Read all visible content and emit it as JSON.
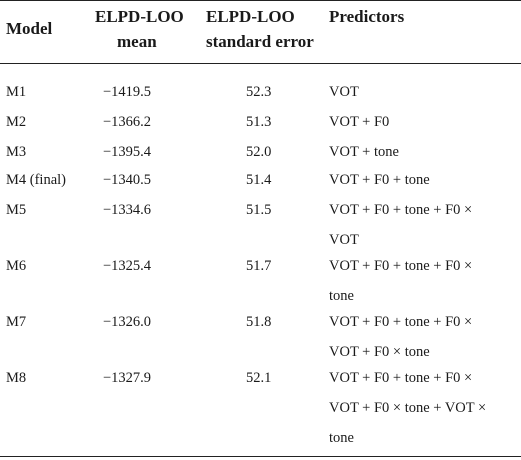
{
  "table": {
    "headers": {
      "model": "Model",
      "mean_line1": "ELPD-LOO",
      "mean_line2": "mean",
      "se_line1": "ELPD-LOO",
      "se_line2": "standard error",
      "predictors": "Predictors"
    },
    "rows": [
      {
        "model": "M1",
        "mean": "−1419.5",
        "se": "52.3",
        "pred": [
          "VOT"
        ]
      },
      {
        "model": "M2",
        "mean": "−1366.2",
        "se": "51.3",
        "pred": [
          "VOT + F0"
        ]
      },
      {
        "model": "M3",
        "mean": "−1395.4",
        "se": "52.0",
        "pred": [
          "VOT + tone"
        ]
      },
      {
        "model": "M4 (final)",
        "mean": "−1340.5",
        "se": "51.4",
        "pred": [
          "VOT + F0 + tone"
        ]
      },
      {
        "model": "M5",
        "mean": "−1334.6",
        "se": "51.5",
        "pred": [
          "VOT + F0 + tone + F0 ×",
          "VOT"
        ]
      },
      {
        "model": "M6",
        "mean": "−1325.4",
        "se": "51.7",
        "pred": [
          "VOT + F0 + tone + F0 ×",
          "tone"
        ]
      },
      {
        "model": "M7",
        "mean": "−1326.0",
        "se": "51.8",
        "pred": [
          "VOT + F0 + tone + F0 ×",
          "VOT + F0 × tone"
        ]
      },
      {
        "model": "M8",
        "mean": "−1327.9",
        "se": "52.1",
        "pred": [
          "VOT + F0 + tone + F0 ×",
          "VOT + F0 × tone + VOT ×",
          "tone"
        ]
      }
    ]
  }
}
